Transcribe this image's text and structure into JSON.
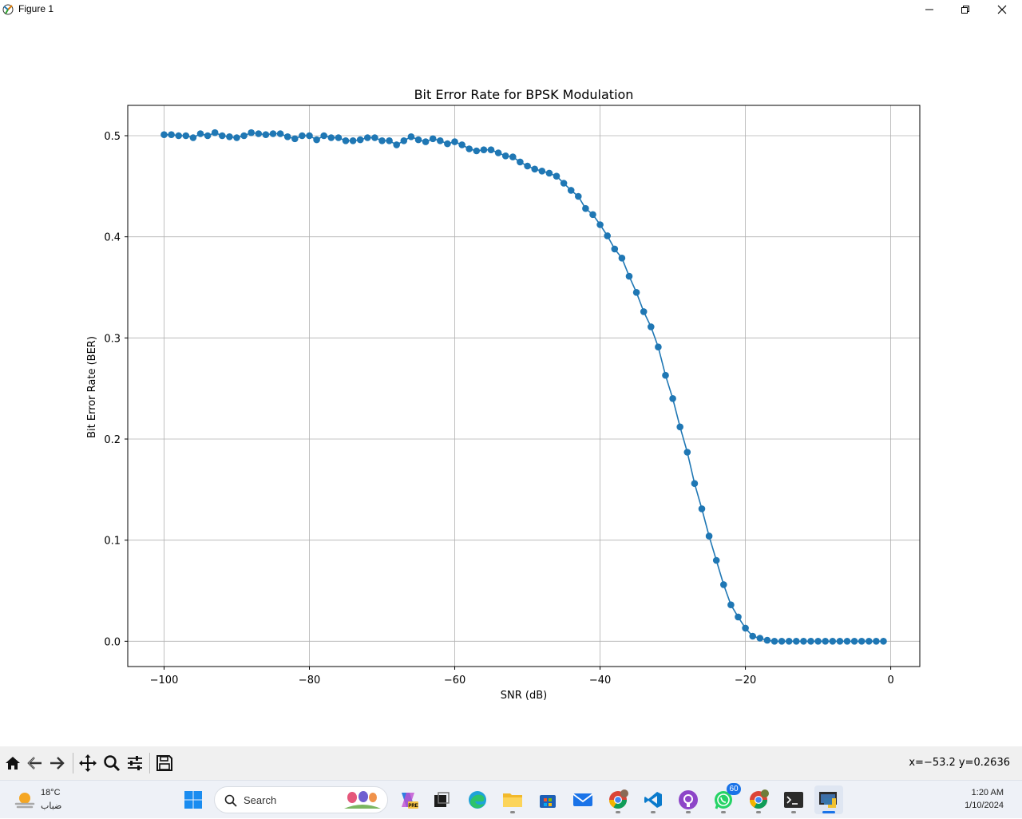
{
  "window": {
    "title": "Figure 1",
    "controls": [
      "minimize",
      "maximize",
      "close"
    ]
  },
  "chart_data": {
    "type": "line",
    "title": "Bit Error Rate for BPSK Modulation",
    "xlabel": "SNR (dB)",
    "ylabel": "Bit Error Rate (BER)",
    "xlim": [
      -105,
      4
    ],
    "ylim": [
      -0.025,
      0.53
    ],
    "xticks": [
      -100,
      -80,
      -60,
      -40,
      -20,
      0
    ],
    "xtick_labels": [
      "−100",
      "−80",
      "−60",
      "−40",
      "−20",
      "0"
    ],
    "yticks": [
      0.0,
      0.1,
      0.2,
      0.3,
      0.4,
      0.5
    ],
    "ytick_labels": [
      "0.0",
      "0.1",
      "0.2",
      "0.3",
      "0.4",
      "0.5"
    ],
    "grid": true,
    "marker": "circle",
    "color": "#1f77b4",
    "series": [
      {
        "x": [
          -100,
          -99,
          -98,
          -97,
          -96,
          -95,
          -94,
          -93,
          -92,
          -91,
          -90,
          -89,
          -88,
          -87,
          -86,
          -85,
          -84,
          -83,
          -82,
          -81,
          -80,
          -79,
          -78,
          -77,
          -76,
          -75,
          -74,
          -73,
          -72,
          -71,
          -70,
          -69,
          -68,
          -67,
          -66,
          -65,
          -64,
          -63,
          -62,
          -61,
          -60,
          -59,
          -58,
          -57,
          -56,
          -55,
          -54,
          -53,
          -52,
          -51,
          -50,
          -49,
          -48,
          -47,
          -46,
          -45,
          -44,
          -43,
          -42,
          -41,
          -40,
          -39,
          -38,
          -37,
          -36,
          -35,
          -34,
          -33,
          -32,
          -31,
          -30,
          -29,
          -28,
          -27,
          -26,
          -25,
          -24,
          -23,
          -22,
          -21,
          -20,
          -19,
          -18,
          -17,
          -16,
          -15,
          -14,
          -13,
          -12,
          -11,
          -10,
          -9,
          -8,
          -7,
          -6,
          -5,
          -4,
          -3,
          -2,
          -1
        ],
        "y": [
          0.501,
          0.501,
          0.5,
          0.5,
          0.498,
          0.502,
          0.5,
          0.503,
          0.5,
          0.499,
          0.498,
          0.5,
          0.503,
          0.502,
          0.501,
          0.502,
          0.502,
          0.499,
          0.497,
          0.5,
          0.5,
          0.496,
          0.5,
          0.498,
          0.498,
          0.495,
          0.495,
          0.496,
          0.498,
          0.498,
          0.495,
          0.495,
          0.491,
          0.495,
          0.499,
          0.496,
          0.494,
          0.497,
          0.495,
          0.492,
          0.494,
          0.491,
          0.487,
          0.485,
          0.486,
          0.486,
          0.483,
          0.48,
          0.479,
          0.474,
          0.47,
          0.467,
          0.465,
          0.463,
          0.46,
          0.453,
          0.446,
          0.44,
          0.428,
          0.422,
          0.412,
          0.401,
          0.388,
          0.379,
          0.361,
          0.345,
          0.326,
          0.311,
          0.291,
          0.263,
          0.24,
          0.212,
          0.187,
          0.156,
          0.131,
          0.104,
          0.08,
          0.056,
          0.036,
          0.024,
          0.013,
          0.005,
          0.003,
          0.001,
          0.0,
          0.0,
          0.0,
          0.0,
          0.0,
          0.0,
          0.0,
          0.0,
          0.0,
          0.0,
          0.0,
          0.0,
          0.0,
          0.0,
          0.0,
          0.0
        ]
      }
    ]
  },
  "toolbar": {
    "buttons": [
      "home-icon",
      "back-icon",
      "forward-icon",
      "pan-icon",
      "zoom-icon",
      "configure-icon",
      "save-icon"
    ],
    "coords_text": "x=−53.2 y=0.2636"
  },
  "taskbar": {
    "weather": {
      "temp": "18°C",
      "desc": "ضباب"
    },
    "search_label": "Search",
    "apps": [
      "start-icon",
      "copilot-icon",
      "task-view-icon",
      "edge-icon",
      "file-explorer-icon",
      "store-icon",
      "mail-icon",
      "chrome-icon",
      "vscode-icon",
      "github-icon",
      "whatsapp-icon",
      "chrome-profile-icon",
      "terminal-icon",
      "python-figure-icon"
    ],
    "whatsapp_badge": "60",
    "clock": {
      "time": "1:20 AM",
      "date": "1/10/2024"
    }
  }
}
